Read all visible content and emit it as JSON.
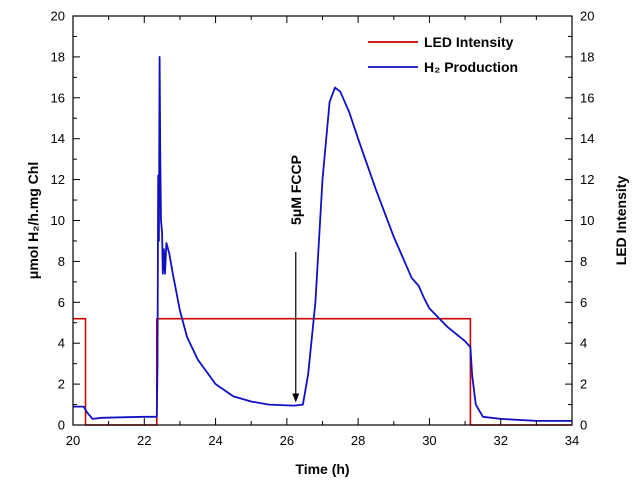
{
  "chart_data": {
    "type": "line",
    "title": "",
    "xlabel": "Time (h)",
    "ylabel": "μmol H₂/h.mg Chl",
    "y2label": "LED Intensity",
    "xlim": [
      20,
      34
    ],
    "ylim": [
      0,
      20
    ],
    "y2lim": [
      0,
      20
    ],
    "x_ticks": [
      "20",
      "22",
      "24",
      "26",
      "28",
      "30",
      "32",
      "34"
    ],
    "y_ticks": [
      "0",
      "2",
      "4",
      "6",
      "8",
      "10",
      "12",
      "14",
      "16",
      "18",
      "20"
    ],
    "y2_ticks": [
      "0",
      "2",
      "4",
      "6",
      "8",
      "10",
      "12",
      "14",
      "16",
      "18",
      "20"
    ],
    "grid": false,
    "legend_position": "top-right",
    "series": [
      {
        "name": "LED Intensity",
        "color": "#cc0000",
        "axis": "right",
        "points": [
          [
            20,
            5.2
          ],
          [
            20.35,
            5.2
          ],
          [
            20.35,
            0
          ],
          [
            22.35,
            0
          ],
          [
            22.35,
            5.2
          ],
          [
            31.15,
            5.2
          ],
          [
            31.15,
            0
          ],
          [
            34,
            0
          ]
        ]
      },
      {
        "name": "H₂ Production",
        "color": "#1010c0",
        "axis": "left",
        "points": [
          [
            20,
            0.9
          ],
          [
            20.3,
            0.9
          ],
          [
            20.4,
            0.6
          ],
          [
            20.55,
            0.3
          ],
          [
            20.8,
            0.35
          ],
          [
            21.5,
            0.38
          ],
          [
            22.0,
            0.4
          ],
          [
            22.35,
            0.4
          ],
          [
            22.37,
            3.0
          ],
          [
            22.39,
            12.2
          ],
          [
            22.41,
            9.0
          ],
          [
            22.43,
            18.0
          ],
          [
            22.45,
            13.0
          ],
          [
            22.47,
            10.0
          ],
          [
            22.5,
            9.4
          ],
          [
            22.52,
            7.4
          ],
          [
            22.55,
            8.6
          ],
          [
            22.58,
            7.4
          ],
          [
            22.62,
            8.9
          ],
          [
            22.7,
            8.4
          ],
          [
            22.8,
            7.4
          ],
          [
            23.0,
            5.6
          ],
          [
            23.2,
            4.3
          ],
          [
            23.5,
            3.2
          ],
          [
            24.0,
            2.0
          ],
          [
            24.5,
            1.4
          ],
          [
            25.0,
            1.15
          ],
          [
            25.5,
            1.0
          ],
          [
            26.2,
            0.95
          ],
          [
            26.45,
            1.0
          ],
          [
            26.6,
            2.5
          ],
          [
            26.8,
            6.0
          ],
          [
            27.0,
            12.0
          ],
          [
            27.2,
            15.8
          ],
          [
            27.35,
            16.5
          ],
          [
            27.5,
            16.3
          ],
          [
            27.75,
            15.3
          ],
          [
            28.0,
            14.0
          ],
          [
            28.5,
            11.5
          ],
          [
            29.0,
            9.2
          ],
          [
            29.5,
            7.2
          ],
          [
            29.7,
            6.8
          ],
          [
            29.85,
            6.2
          ],
          [
            30.0,
            5.7
          ],
          [
            30.5,
            4.8
          ],
          [
            31.0,
            4.1
          ],
          [
            31.15,
            3.8
          ],
          [
            31.2,
            2.4
          ],
          [
            31.3,
            1.0
          ],
          [
            31.5,
            0.4
          ],
          [
            32.0,
            0.3
          ],
          [
            33.0,
            0.2
          ],
          [
            34.0,
            0.2
          ]
        ]
      }
    ],
    "annotations": [
      {
        "text": "5μM  FCCP",
        "x": 26.25,
        "y": 1.1
      }
    ]
  }
}
